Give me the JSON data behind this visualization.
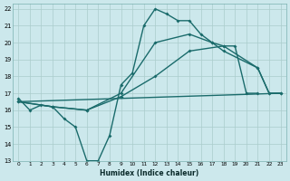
{
  "background_color": "#cce8ec",
  "grid_color": "#aacccc",
  "line_color": "#1a6b6b",
  "xlabel": "Humidex (Indice chaleur)",
  "xlim": [
    -0.5,
    23.5
  ],
  "ylim": [
    13,
    22.3
  ],
  "yticks": [
    13,
    14,
    15,
    16,
    17,
    18,
    19,
    20,
    21,
    22
  ],
  "xticks": [
    0,
    1,
    2,
    3,
    4,
    5,
    6,
    7,
    8,
    9,
    10,
    11,
    12,
    13,
    14,
    15,
    16,
    17,
    18,
    19,
    20,
    21,
    22,
    23
  ],
  "series1_x": [
    0,
    1,
    2,
    3,
    4,
    5,
    6,
    7,
    8,
    9,
    10,
    11,
    12,
    13,
    14,
    15,
    16,
    17,
    18,
    19,
    20,
    21,
    22,
    23
  ],
  "series1_y": [
    16.7,
    16.0,
    16.3,
    16.2,
    15.5,
    15.0,
    13.0,
    13.0,
    14.5,
    17.5,
    18.2,
    21.0,
    22.0,
    21.7,
    21.3,
    21.3,
    20.5,
    20.0,
    19.8,
    19.8,
    17.0,
    17.0,
    null,
    null
  ],
  "series2_x": [
    0,
    23
  ],
  "series2_y": [
    16.5,
    17.0
  ],
  "series3_x": [
    0,
    3,
    6,
    9,
    12,
    15,
    18,
    21,
    22,
    23
  ],
  "series3_y": [
    16.5,
    16.2,
    16.0,
    16.8,
    18.0,
    19.5,
    19.8,
    18.5,
    17.0,
    17.0
  ],
  "series4_x": [
    0,
    3,
    6,
    9,
    12,
    15,
    17,
    18,
    21,
    22,
    23
  ],
  "series4_y": [
    16.5,
    16.2,
    16.0,
    17.0,
    20.0,
    20.5,
    20.0,
    19.5,
    18.5,
    17.0,
    17.0
  ]
}
